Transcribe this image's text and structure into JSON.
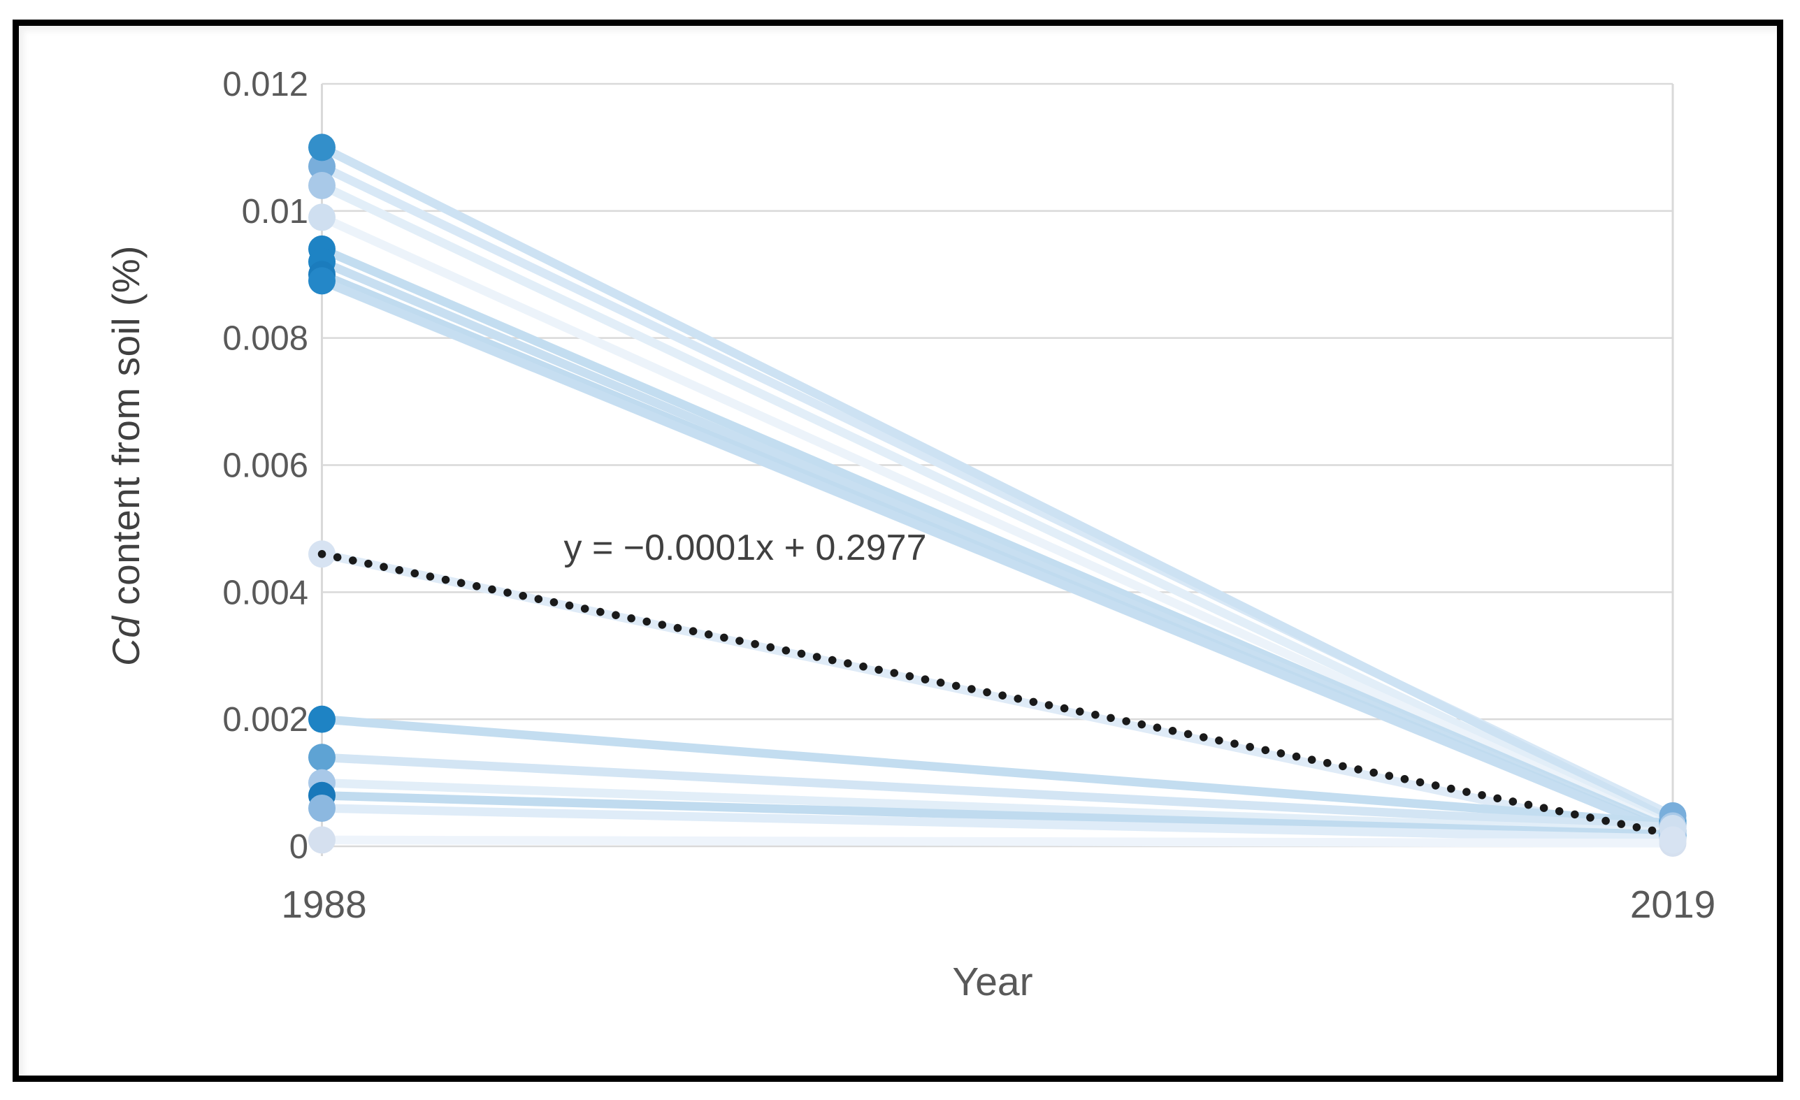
{
  "colors": {
    "background": "#ffffff",
    "frame_border": "#000000",
    "gridline": "#d9d9d9",
    "axis_line": "#d9d9d9",
    "tick_text": "#595959",
    "axis_title_text": "#404040",
    "trendline": "#1a1a1a"
  },
  "chart_data": {
    "type": "scatter",
    "title": "",
    "xlabel": "Year",
    "ylabel_italic": "Cd",
    "ylabel_rest": " content from soil (%)",
    "x_categories": [
      "1988",
      "2019"
    ],
    "x_values": [
      1988,
      2019
    ],
    "ylim": [
      0,
      0.012
    ],
    "yticks": [
      "0",
      "0.002",
      "0.004",
      "0.006",
      "0.008",
      "0.01",
      "0.012"
    ],
    "ytick_values": [
      0,
      0.002,
      0.004,
      0.006,
      0.008,
      0.01,
      0.012
    ],
    "grid": true,
    "legend": "none",
    "series": [
      {
        "y1988": 0.0107,
        "y2019": 0.00048,
        "point_color": "#79aedb",
        "line_color": "#d8e8f6"
      },
      {
        "y1988": 0.011,
        "y2019": 0.0004,
        "point_color": "#338fca",
        "line_color": "#cde2f3"
      },
      {
        "y1988": 0.0104,
        "y2019": 0.00032,
        "point_color": "#a9c9e8",
        "line_color": "#e2eef8"
      },
      {
        "y1988": 0.0099,
        "y2019": 0.00028,
        "point_color": "#cfdff0",
        "line_color": "#ecf3fa"
      },
      {
        "y1988": 0.0094,
        "y2019": 0.00025,
        "point_color": "#1e83c4",
        "line_color": "#c3ddf0"
      },
      {
        "y1988": 0.0092,
        "y2019": 0.00022,
        "point_color": "#1e83c4",
        "line_color": "#c8dff1"
      },
      {
        "y1988": 0.009,
        "y2019": 0.0002,
        "point_color": "#1b7cbd",
        "line_color": "#c0dbef"
      },
      {
        "y1988": 0.0089,
        "y2019": 0.00018,
        "point_color": "#2487c8",
        "line_color": "#c6def1"
      },
      {
        "y1988": 0.0046,
        "y2019": 0.0001,
        "point_color": "#d7e3f2",
        "line_color": "#dfebf7"
      },
      {
        "y1988": 0.002,
        "y2019": 0.00036,
        "point_color": "#1e83c4",
        "line_color": "#c3ddf0"
      },
      {
        "y1988": 0.0014,
        "y2019": 0.0003,
        "point_color": "#5ea3d4",
        "line_color": "#d3e5f4"
      },
      {
        "y1988": 0.001,
        "y2019": 0.00022,
        "point_color": "#a8c8e8",
        "line_color": "#e2eef8"
      },
      {
        "y1988": 0.0008,
        "y2019": 0.00018,
        "point_color": "#1878ba",
        "line_color": "#c0dbef"
      },
      {
        "y1988": 0.0006,
        "y2019": 0.00012,
        "point_color": "#8cb8e0",
        "line_color": "#dfecf8"
      },
      {
        "y1988": 0.0001,
        "y2019": 5e-05,
        "point_color": "#d5e0ef",
        "line_color": "#eef4fb"
      }
    ],
    "trendline": {
      "equation": "y = −0.0001x + 0.2977",
      "style": "dotted",
      "color": "#1a1a1a",
      "start_x": 1988,
      "start_y": 0.0046,
      "end_x": 2019,
      "end_y": 0.0002
    }
  }
}
